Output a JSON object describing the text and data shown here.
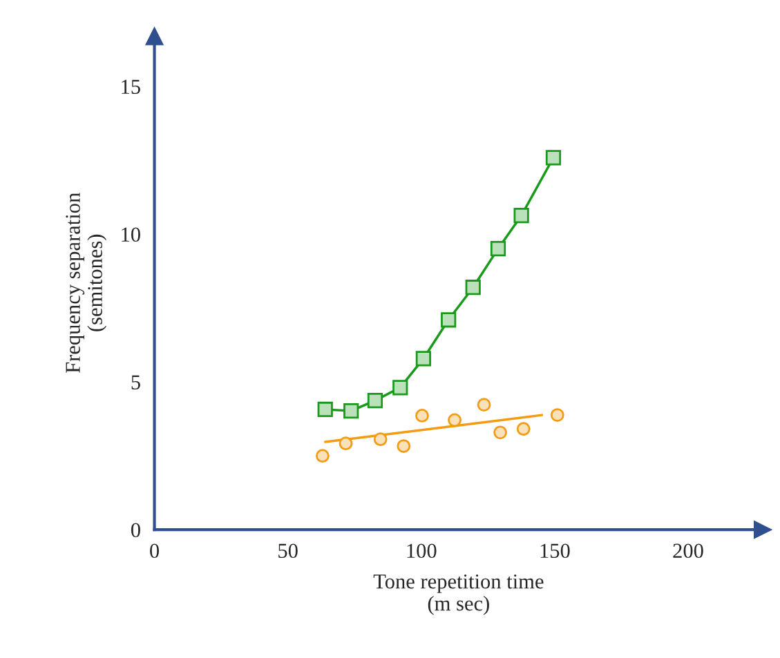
{
  "chart_data": {
    "type": "line",
    "xlabel": "Tone repetition time\n(m sec)",
    "ylabel": "Frequency separation\n(semitones)",
    "xlim": [
      0,
      228
    ],
    "ylim": [
      0,
      16.7
    ],
    "xticks": [
      0,
      50,
      100,
      150,
      200
    ],
    "yticks": [
      0,
      5,
      10,
      15
    ],
    "grid": false,
    "series": [
      {
        "color": "#1a9a1a",
        "marker": "square",
        "x": [
          64.0,
          73.7,
          82.7,
          92.1,
          100.8,
          110.2,
          119.4,
          128.8,
          137.5,
          149.5
        ],
        "values": [
          4.07,
          4.02,
          4.37,
          4.81,
          5.79,
          7.1,
          8.2,
          9.51,
          10.63,
          12.59
        ]
      },
      {
        "type": "scatter",
        "color": "#f39c12",
        "marker": "circle",
        "x": [
          63.0,
          71.7,
          84.7,
          93.4,
          100.3,
          112.5,
          123.5,
          129.6,
          138.3,
          151.0
        ],
        "values": [
          2.5,
          2.92,
          3.06,
          2.83,
          3.86,
          3.71,
          4.23,
          3.29,
          3.41,
          3.88
        ]
      },
      {
        "color": "#f39c12",
        "marker": "none",
        "x": [
          64.0,
          145.2
        ],
        "values": [
          2.97,
          3.88
        ]
      }
    ]
  }
}
